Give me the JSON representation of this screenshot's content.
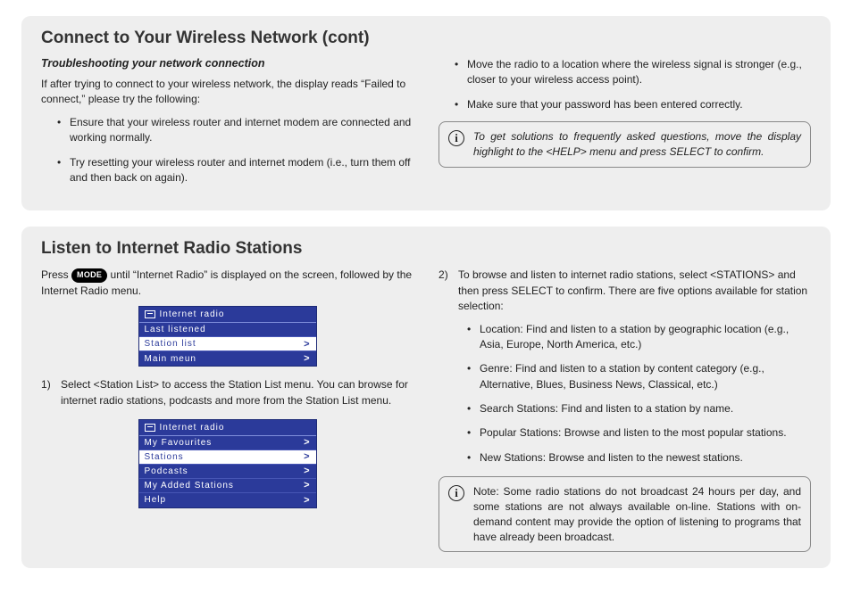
{
  "colors": {
    "page_bg": "#ffffff",
    "section_bg": "#eeeeee",
    "radio_bg": "#2b3a9a",
    "radio_border": "#1d2a76",
    "radio_row_divider": "#4756b5",
    "radio_selected_bg": "#ffffff",
    "radio_selected_fg": "#2b3a9a",
    "mode_pill_bg": "#000000",
    "mode_pill_fg": "#ffffff",
    "info_border": "#888888"
  },
  "section1": {
    "heading": "Connect to Your Wireless Network (cont)",
    "subhead": "Troubleshooting your network connection",
    "intro": "If after trying to connect to your wireless network, the display reads “Failed to connect,” please try the following:",
    "left_bullets": [
      "Ensure that your wireless router and internet modem are connected and working normally.",
      "Try resetting your wireless router and internet modem (i.e., turn them off and then back on again)."
    ],
    "right_bullets": [
      "Move the radio to a location where the wireless signal is stronger (e.g., closer to your wireless access point).",
      "Make sure that your password has been entered correctly."
    ],
    "info": "To get solutions to frequently asked questions, move the display highlight to the <HELP> menu and press SELECT to confirm."
  },
  "section2": {
    "heading": "Listen to Internet Radio Stations",
    "press_pre": "Press ",
    "mode_label": "MODE",
    "press_post": " until “Internet Radio” is displayed on the screen, followed by the Internet Radio menu.",
    "screen1": {
      "title": "Internet  radio",
      "rows": [
        {
          "label": "Last  listened",
          "selected": false,
          "chevron": false
        },
        {
          "label": "Station  list",
          "selected": true,
          "chevron": true
        },
        {
          "label": "Main  meun",
          "selected": false,
          "chevron": true
        }
      ]
    },
    "step1": "Select <Station List> to access the Station List menu. You can browse for internet radio stations, podcasts and more from the Station List menu.",
    "screen2": {
      "title": "Internet  radio",
      "rows": [
        {
          "label": "My  Favourites",
          "selected": false,
          "chevron": true
        },
        {
          "label": "Stations",
          "selected": true,
          "chevron": true
        },
        {
          "label": "Podcasts",
          "selected": false,
          "chevron": true
        },
        {
          "label": "My  Added  Stations",
          "selected": false,
          "chevron": true
        },
        {
          "label": "Help",
          "selected": false,
          "chevron": true
        }
      ]
    },
    "step2_intro": "To browse and listen to internet radio stations, select <STATIONS> and then press SELECT to confirm. There are five options available for station selection:",
    "step2_bullets": [
      "Location: Find and listen to a station by geographic location (e.g., Asia, Europe, North America, etc.)",
      "Genre: Find and listen to a station by content category (e.g., Alternative, Blues, Business News, Classical, etc.)",
      "Search Stations: Find and listen to a station by name.",
      "Popular Stations: Browse and listen to the most popular stations.",
      "New Stations: Browse and listen to the newest stations."
    ],
    "info": "Note: Some radio stations do not broadcast 24 hours per day, and some stations are not always available on-line. Stations with on-demand content may provide the option of listening to programs that have already been broadcast."
  }
}
